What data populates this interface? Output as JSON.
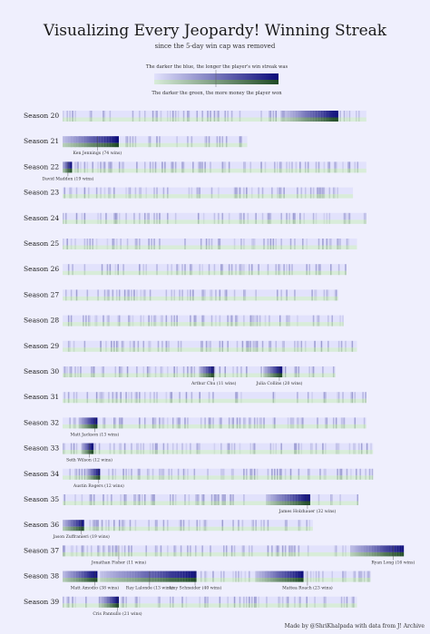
{
  "chart_data": {
    "type": "heatmap",
    "title": "Visualizing Every Jeopardy! Winning Streak",
    "subtitle": "since the 5-day win cap was removed",
    "legend": {
      "top_text": "The darker the blue, the longer the player's win streak was",
      "bottom_text": "The darker the green, the more money the player won",
      "placement": "top-center"
    },
    "colors": {
      "blue_light": "#e2e2fc",
      "blue_dark": "#0c0c7a",
      "green_light": "#d8ecd9",
      "green_dark": "#1f4a25",
      "background": "#efeffd"
    },
    "footer": "Made by @ShriKhalpada with data from J! Archive",
    "seasons": [
      {
        "label": "Season 20",
        "games": 227,
        "streaks": [
          {
            "start": 166,
            "length": 40
          }
        ],
        "annotations": []
      },
      {
        "label": "Season 21",
        "games": 138,
        "streaks": [
          {
            "start": 0,
            "length": 42
          }
        ],
        "annotations": [
          {
            "text": "Ken Jennings (74 wins)",
            "at": 26
          }
        ]
      },
      {
        "label": "Season 22",
        "games": 227,
        "streaks": [
          {
            "start": 0,
            "length": 7
          }
        ],
        "annotations": [
          {
            "text": "David Madden (19 wins)",
            "at": 4
          }
        ]
      },
      {
        "label": "Season 23",
        "games": 217,
        "streaks": [],
        "annotations": []
      },
      {
        "label": "Season 24",
        "games": 227,
        "streaks": [],
        "annotations": []
      },
      {
        "label": "Season 25",
        "games": 220,
        "streaks": [],
        "annotations": []
      },
      {
        "label": "Season 26",
        "games": 212,
        "streaks": [],
        "annotations": []
      },
      {
        "label": "Season 27",
        "games": 206,
        "streaks": [],
        "annotations": []
      },
      {
        "label": "Season 28",
        "games": 210,
        "streaks": [],
        "annotations": []
      },
      {
        "label": "Season 29",
        "games": 220,
        "streaks": [],
        "annotations": []
      },
      {
        "label": "Season 30",
        "games": 204,
        "streaks": [
          {
            "start": 102,
            "length": 11
          },
          {
            "start": 150,
            "length": 14
          }
        ],
        "annotations": [
          {
            "text": "Arthur Chu (11 wins)",
            "at": 113
          },
          {
            "text": "Julia Collins (20 wins)",
            "at": 162
          }
        ]
      },
      {
        "label": "Season 31",
        "games": 227,
        "streaks": [],
        "annotations": []
      },
      {
        "label": "Season 32",
        "games": 227,
        "streaks": [
          {
            "start": 12,
            "length": 14
          }
        ],
        "annotations": [
          {
            "text": "Matt Jackson (13 wins)",
            "at": 24
          }
        ]
      },
      {
        "label": "Season 33",
        "games": 232,
        "streaks": [
          {
            "start": 14,
            "length": 9
          }
        ],
        "annotations": [
          {
            "text": "Seth Wilson (12 wins)",
            "at": 20
          }
        ]
      },
      {
        "label": "Season 34",
        "games": 232,
        "streaks": [
          {
            "start": 18,
            "length": 10
          }
        ],
        "annotations": [
          {
            "text": "Austin Rogers (12 wins)",
            "at": 27
          }
        ]
      },
      {
        "label": "Season 35",
        "games": 221,
        "streaks": [
          {
            "start": 152,
            "length": 33
          }
        ],
        "annotations": [
          {
            "text": "James Holzhauer (32 wins)",
            "at": 183
          }
        ]
      },
      {
        "label": "Season 36",
        "games": 187,
        "streaks": [
          {
            "start": 0,
            "length": 16
          }
        ],
        "annotations": [
          {
            "text": "Jason Zuffranieri (19 wins)",
            "at": 14
          }
        ]
      },
      {
        "label": "Season 37",
        "games": 255,
        "streaks": [
          {
            "start": 215,
            "length": 40
          }
        ],
        "annotations": [
          {
            "text": "Jonathan Fisher (11 wins)",
            "at": 42
          },
          {
            "text": "Ryan Long (16 wins)",
            "at": 247
          }
        ]
      },
      {
        "label": "Season 38",
        "games": 230,
        "streaks": [
          {
            "start": 0,
            "length": 26
          },
          {
            "start": 28,
            "length": 72
          },
          {
            "start": 144,
            "length": 36
          }
        ],
        "annotations": [
          {
            "text": "Matt Amodio (38 wins)",
            "at": 24
          },
          {
            "text": "Ray Lalonde (13 wins)",
            "at": 65
          },
          {
            "text": "Amy Schneider (40 wins)",
            "at": 99
          },
          {
            "text": "Mattea Roach (23 wins)",
            "at": 183
          }
        ]
      },
      {
        "label": "Season 39",
        "games": 220,
        "streaks": [
          {
            "start": 28,
            "length": 14
          }
        ],
        "annotations": [
          {
            "text": "Cris Pannullo (21 wins)",
            "at": 41
          }
        ]
      }
    ]
  }
}
